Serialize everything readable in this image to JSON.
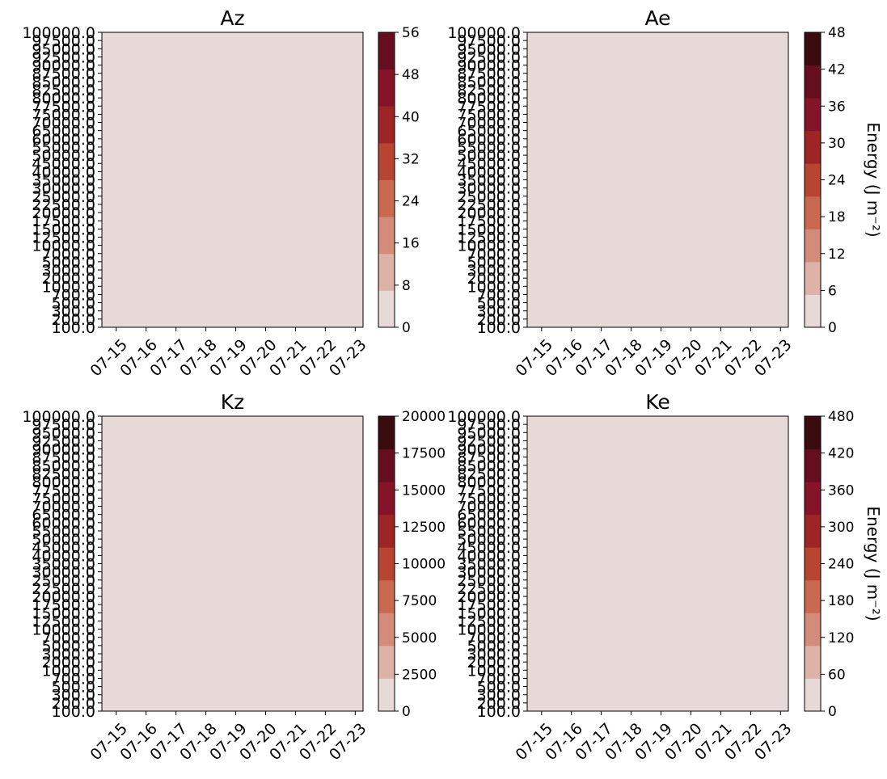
{
  "figure": {
    "colormap": [
      "#e7d9d7",
      "#ddb3a8",
      "#d38c79",
      "#c9694f",
      "#b8452f",
      "#9e2526",
      "#861428",
      "#650e1f",
      "#3a0c0e"
    ],
    "line_color": "#000000"
  },
  "chart_data": [
    {
      "type": "heatmap",
      "subtype": "filled-contour",
      "title": "Az",
      "x": [
        "07-15",
        "07-16",
        "07-17",
        "07-18",
        "07-19",
        "07-20",
        "07-21",
        "07-22",
        "07-23"
      ],
      "y": [
        "100000.0",
        "97500.0",
        "95000.0",
        "92500.0",
        "90000.0",
        "87500.0",
        "85000.0",
        "82500.0",
        "80000.0",
        "77500.0",
        "75000.0",
        "70000.0",
        "65000.0",
        "60000.0",
        "55000.0",
        "50000.0",
        "45000.0",
        "40000.0",
        "35000.0",
        "30000.0",
        "25000.0",
        "22500.0",
        "20000.0",
        "17500.0",
        "15000.0",
        "12500.0",
        "10000.0",
        "7000.0",
        "5000.0",
        "3000.0",
        "2000.0",
        "1000.0",
        "700.0",
        "500.0",
        "300.0",
        "200.0",
        "100.0"
      ],
      "colorbar": {
        "ticks": [
          "0",
          "8",
          "16",
          "24",
          "32",
          "40",
          "48",
          "56"
        ],
        "label": ""
      }
    },
    {
      "type": "heatmap",
      "subtype": "filled-contour",
      "title": "Ae",
      "x": [
        "07-15",
        "07-16",
        "07-17",
        "07-18",
        "07-19",
        "07-20",
        "07-21",
        "07-22",
        "07-23"
      ],
      "y": [
        "100000.0",
        "97500.0",
        "95000.0",
        "92500.0",
        "90000.0",
        "87500.0",
        "85000.0",
        "82500.0",
        "80000.0",
        "77500.0",
        "75000.0",
        "70000.0",
        "65000.0",
        "60000.0",
        "55000.0",
        "50000.0",
        "45000.0",
        "40000.0",
        "35000.0",
        "30000.0",
        "25000.0",
        "22500.0",
        "20000.0",
        "17500.0",
        "15000.0",
        "12500.0",
        "10000.0",
        "7000.0",
        "5000.0",
        "3000.0",
        "2000.0",
        "1000.0",
        "700.0",
        "500.0",
        "300.0",
        "200.0",
        "100.0"
      ],
      "colorbar": {
        "ticks": [
          "0",
          "6",
          "12",
          "18",
          "24",
          "30",
          "36",
          "42",
          "48"
        ],
        "label": "Energy  (J m⁻²)"
      }
    },
    {
      "type": "heatmap",
      "subtype": "filled-contour",
      "title": "Kz",
      "x": [
        "07-15",
        "07-16",
        "07-17",
        "07-18",
        "07-19",
        "07-20",
        "07-21",
        "07-22",
        "07-23"
      ],
      "y": [
        "100000.0",
        "97500.0",
        "95000.0",
        "92500.0",
        "90000.0",
        "87500.0",
        "85000.0",
        "82500.0",
        "80000.0",
        "77500.0",
        "75000.0",
        "70000.0",
        "65000.0",
        "60000.0",
        "55000.0",
        "50000.0",
        "45000.0",
        "40000.0",
        "35000.0",
        "30000.0",
        "25000.0",
        "22500.0",
        "20000.0",
        "17500.0",
        "15000.0",
        "12500.0",
        "10000.0",
        "7000.0",
        "5000.0",
        "3000.0",
        "2000.0",
        "1000.0",
        "700.0",
        "500.0",
        "300.0",
        "200.0",
        "100.0"
      ],
      "colorbar": {
        "ticks": [
          "0",
          "2500",
          "5000",
          "7500",
          "10000",
          "12500",
          "15000",
          "17500",
          "20000"
        ],
        "label": ""
      }
    },
    {
      "type": "heatmap",
      "subtype": "filled-contour",
      "title": "Ke",
      "x": [
        "07-15",
        "07-16",
        "07-17",
        "07-18",
        "07-19",
        "07-20",
        "07-21",
        "07-22",
        "07-23"
      ],
      "y": [
        "100000.0",
        "97500.0",
        "95000.0",
        "92500.0",
        "90000.0",
        "87500.0",
        "85000.0",
        "82500.0",
        "80000.0",
        "77500.0",
        "75000.0",
        "70000.0",
        "65000.0",
        "60000.0",
        "55000.0",
        "50000.0",
        "45000.0",
        "40000.0",
        "35000.0",
        "30000.0",
        "25000.0",
        "22500.0",
        "20000.0",
        "17500.0",
        "15000.0",
        "12500.0",
        "10000.0",
        "7000.0",
        "5000.0",
        "3000.0",
        "2000.0",
        "1000.0",
        "700.0",
        "500.0",
        "300.0",
        "200.0",
        "100.0"
      ],
      "colorbar": {
        "ticks": [
          "0",
          "60",
          "120",
          "180",
          "240",
          "300",
          "360",
          "420",
          "480"
        ],
        "label": "Energy  (J m⁻²)"
      }
    }
  ]
}
